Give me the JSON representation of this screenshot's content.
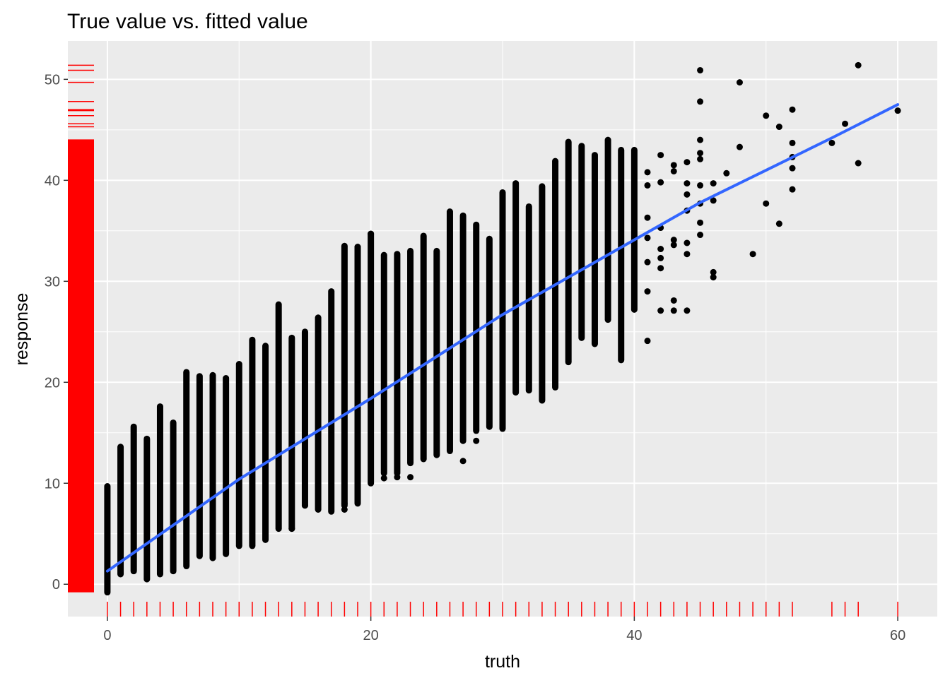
{
  "chart_data": {
    "type": "scatter",
    "title": "True value vs. fitted value",
    "xlabel": "truth",
    "ylabel": "response",
    "xlim": [
      -3,
      63
    ],
    "ylim": [
      -3.2,
      53.8
    ],
    "x_ticks": [
      0,
      20,
      40,
      60
    ],
    "y_ticks": [
      0,
      10,
      20,
      30,
      40,
      50
    ],
    "grid": true,
    "colors": {
      "panel_background": "#ebebeb",
      "grid": "#ffffff",
      "points": "#000000",
      "smooth_line": "#3366ff",
      "rug": "#ff0000",
      "tick_label": "#4d4d4d"
    },
    "point_strips": [
      {
        "x": 0,
        "ymin": -0.8,
        "ymax": 9.7
      },
      {
        "x": 1,
        "ymin": 1.0,
        "ymax": 13.6
      },
      {
        "x": 2,
        "ymin": 1.3,
        "ymax": 15.6
      },
      {
        "x": 3,
        "ymin": 0.5,
        "ymax": 14.4
      },
      {
        "x": 4,
        "ymin": 1.0,
        "ymax": 17.6
      },
      {
        "x": 5,
        "ymin": 1.3,
        "ymax": 16.0
      },
      {
        "x": 6,
        "ymin": 1.8,
        "ymax": 21.0
      },
      {
        "x": 7,
        "ymin": 2.8,
        "ymax": 20.6
      },
      {
        "x": 8,
        "ymin": 2.6,
        "ymax": 20.7
      },
      {
        "x": 9,
        "ymin": 3.0,
        "ymax": 20.4
      },
      {
        "x": 10,
        "ymin": 3.8,
        "ymax": 21.8
      },
      {
        "x": 11,
        "ymin": 3.8,
        "ymax": 24.2
      },
      {
        "x": 12,
        "ymin": 4.4,
        "ymax": 23.6
      },
      {
        "x": 13,
        "ymin": 5.5,
        "ymax": 27.7
      },
      {
        "x": 14,
        "ymin": 5.5,
        "ymax": 24.4
      },
      {
        "x": 15,
        "ymin": 7.8,
        "ymax": 25.0
      },
      {
        "x": 16,
        "ymin": 7.4,
        "ymax": 26.4
      },
      {
        "x": 17,
        "ymin": 7.2,
        "ymax": 29.0
      },
      {
        "x": 18,
        "ymin": 7.8,
        "ymax": 33.5
      },
      {
        "x": 19,
        "ymin": 8.0,
        "ymax": 33.4
      },
      {
        "x": 20,
        "ymin": 10.0,
        "ymax": 34.7
      },
      {
        "x": 21,
        "ymin": 11.0,
        "ymax": 32.6
      },
      {
        "x": 22,
        "ymin": 11.0,
        "ymax": 32.7
      },
      {
        "x": 23,
        "ymin": 12.0,
        "ymax": 33.0
      },
      {
        "x": 24,
        "ymin": 12.4,
        "ymax": 34.5
      },
      {
        "x": 25,
        "ymin": 12.8,
        "ymax": 33.0
      },
      {
        "x": 26,
        "ymin": 13.2,
        "ymax": 36.9
      },
      {
        "x": 27,
        "ymin": 14.2,
        "ymax": 36.5
      },
      {
        "x": 28,
        "ymin": 15.2,
        "ymax": 35.6
      },
      {
        "x": 29,
        "ymin": 15.6,
        "ymax": 34.2
      },
      {
        "x": 30,
        "ymin": 15.4,
        "ymax": 38.8
      },
      {
        "x": 31,
        "ymin": 19.0,
        "ymax": 39.7
      },
      {
        "x": 32,
        "ymin": 19.2,
        "ymax": 37.4
      },
      {
        "x": 33,
        "ymin": 18.2,
        "ymax": 39.4
      },
      {
        "x": 34,
        "ymin": 19.5,
        "ymax": 41.9
      },
      {
        "x": 35,
        "ymin": 22.0,
        "ymax": 43.8
      },
      {
        "x": 36,
        "ymin": 24.4,
        "ymax": 43.4
      },
      {
        "x": 37,
        "ymin": 23.8,
        "ymax": 42.5
      },
      {
        "x": 38,
        "ymin": 26.2,
        "ymax": 44.0
      },
      {
        "x": 39,
        "ymin": 22.2,
        "ymax": 43.0
      },
      {
        "x": 40,
        "ymin": 27.2,
        "ymax": 43.0
      }
    ],
    "points": [
      [
        18,
        8.0
      ],
      [
        18,
        7.4
      ],
      [
        19,
        33.4
      ],
      [
        20,
        34.7
      ],
      [
        15,
        7.8
      ],
      [
        14,
        5.5
      ],
      [
        21,
        10.5
      ],
      [
        22,
        10.6
      ],
      [
        23,
        10.6
      ],
      [
        27,
        12.2
      ],
      [
        28,
        14.2
      ],
      [
        41,
        24.1
      ],
      [
        41,
        40.8
      ],
      [
        41,
        39.5
      ],
      [
        41,
        36.3
      ],
      [
        41,
        34.3
      ],
      [
        41,
        31.9
      ],
      [
        41,
        29.0
      ],
      [
        42,
        42.5
      ],
      [
        42,
        39.8
      ],
      [
        42,
        35.3
      ],
      [
        42,
        33.2
      ],
      [
        42,
        32.3
      ],
      [
        42,
        31.3
      ],
      [
        42,
        27.1
      ],
      [
        43,
        41.5
      ],
      [
        43,
        40.9
      ],
      [
        43,
        34.1
      ],
      [
        43,
        33.6
      ],
      [
        43,
        28.1
      ],
      [
        43,
        27.1
      ],
      [
        44,
        41.8
      ],
      [
        44,
        39.7
      ],
      [
        44,
        38.6
      ],
      [
        44,
        37.0
      ],
      [
        44,
        33.8
      ],
      [
        44,
        32.7
      ],
      [
        44,
        27.1
      ],
      [
        45,
        50.9
      ],
      [
        45,
        47.8
      ],
      [
        45,
        44.0
      ],
      [
        45,
        42.7
      ],
      [
        45,
        42.1
      ],
      [
        45,
        39.5
      ],
      [
        45,
        37.7
      ],
      [
        45,
        35.8
      ],
      [
        45,
        34.6
      ],
      [
        46,
        39.7
      ],
      [
        46,
        38.0
      ],
      [
        46,
        30.9
      ],
      [
        46,
        30.4
      ],
      [
        47,
        40.7
      ],
      [
        48,
        49.7
      ],
      [
        48,
        43.3
      ],
      [
        49,
        32.7
      ],
      [
        50,
        46.4
      ],
      [
        50,
        37.7
      ],
      [
        51,
        45.3
      ],
      [
        51,
        35.7
      ],
      [
        52,
        47.0
      ],
      [
        52,
        43.7
      ],
      [
        52,
        42.3
      ],
      [
        52,
        41.2
      ],
      [
        52,
        39.1
      ],
      [
        55,
        43.7
      ],
      [
        56,
        45.6
      ],
      [
        57,
        51.4
      ],
      [
        57,
        41.7
      ],
      [
        60,
        46.9
      ]
    ],
    "smooth_line": {
      "x": [
        0,
        10,
        20,
        30,
        40,
        45,
        50,
        55,
        60
      ],
      "y": [
        1.3,
        10.4,
        18.4,
        26.7,
        34.1,
        37.8,
        41.0,
        44.2,
        47.5
      ]
    },
    "rug_x": [
      0,
      1,
      2,
      3,
      4,
      5,
      6,
      7,
      8,
      9,
      10,
      11,
      12,
      13,
      14,
      15,
      16,
      17,
      18,
      19,
      20,
      21,
      22,
      23,
      24,
      25,
      26,
      27,
      28,
      29,
      30,
      31,
      32,
      33,
      34,
      35,
      36,
      37,
      38,
      39,
      40,
      41,
      42,
      43,
      44,
      45,
      46,
      47,
      48,
      49,
      50,
      51,
      52,
      55,
      56,
      57,
      60
    ],
    "rug_y_dense_range": [
      -0.8,
      44.0
    ],
    "rug_y": [
      44.0,
      43.8,
      43.4,
      43.0,
      42.5,
      41.9,
      41.5,
      40.9,
      40.7,
      39.9,
      39.5,
      39.0,
      38.6,
      38.0,
      37.7,
      37.4,
      37.0,
      45.3,
      45.6,
      46.4,
      46.9,
      47.0,
      47.8,
      49.7,
      50.9,
      51.4
    ]
  }
}
